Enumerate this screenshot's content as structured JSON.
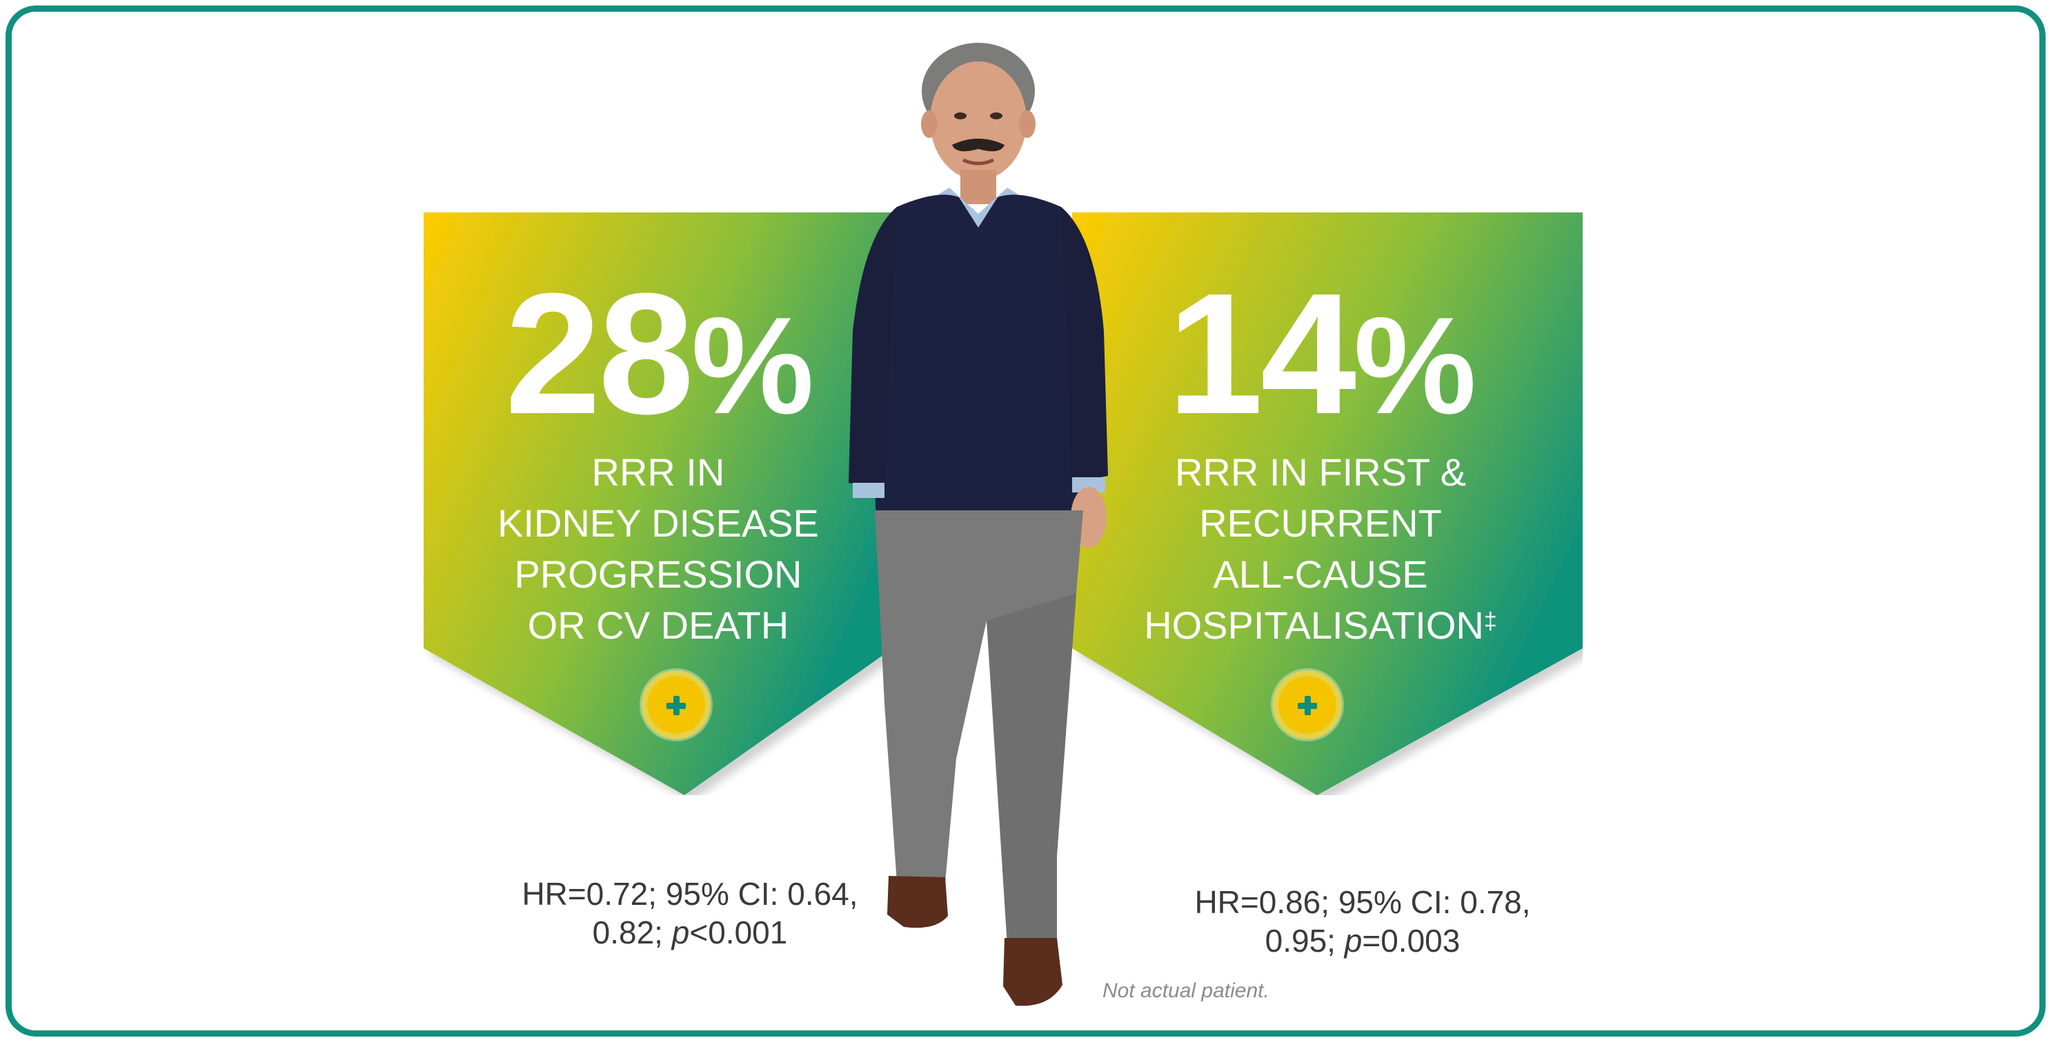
{
  "panels": [
    {
      "percentage": "28",
      "percent_symbol": "%",
      "description_lines": [
        "RRR IN",
        "KIDNEY DISEASE",
        "PROGRESSION",
        "OR CV DEATH"
      ],
      "stats_text": [
        "HR=0.72; 95% CI: 0.64,",
        "0.82; ",
        "p",
        "<0.001"
      ],
      "plus_icon": "plus-icon"
    },
    {
      "percentage": "14",
      "percent_symbol": "%",
      "description_lines": [
        "RRR IN FIRST &",
        "RECURRENT",
        "ALL-CAUSE",
        "HOSPITALISATION"
      ],
      "description_superscript": "‡",
      "stats_text": [
        "HR=0.86; 95% CI: 0.78,",
        "0.95; ",
        "p",
        "=0.003"
      ],
      "plus_icon": "plus-icon"
    }
  ],
  "disclaimer": "Not actual patient.",
  "colors": {
    "frame": "#10917f",
    "gradient_yellow": "#ffcc00",
    "gradient_green": "#0f927c",
    "plus_button": "#f5c400",
    "plus_glyph": "#0f8d7a"
  }
}
